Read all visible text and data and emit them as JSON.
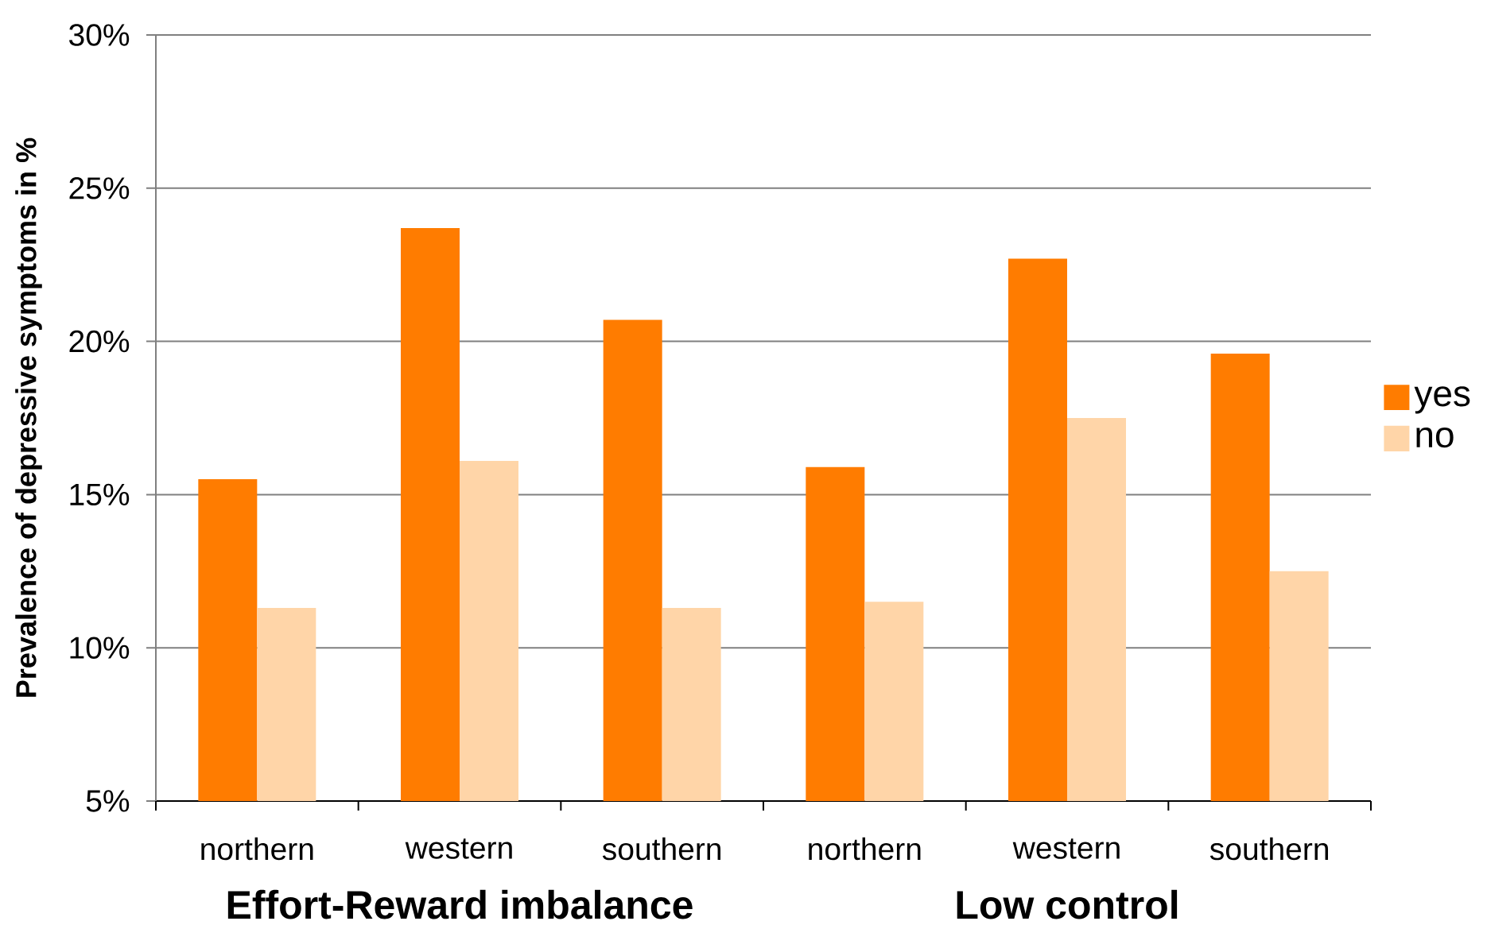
{
  "chart_data": {
    "type": "bar",
    "ylabel": "Prevalence of depressive symptoms in %",
    "categories": [
      "northern",
      "western",
      "southern",
      "northern",
      "western",
      "southern"
    ],
    "series": [
      {
        "name": "yes",
        "color": "#ff7c00",
        "values": [
          15.5,
          23.7,
          20.7,
          15.9,
          22.7,
          19.6
        ]
      },
      {
        "name": "no",
        "color": "#ffd5a8",
        "values": [
          11.3,
          16.1,
          11.3,
          11.5,
          17.5,
          12.5
        ]
      }
    ],
    "ylim": [
      5,
      30
    ],
    "yticks": [
      {
        "value": 5,
        "label": "5%"
      },
      {
        "value": 10,
        "label": "10%"
      },
      {
        "value": 15,
        "label": "15%"
      },
      {
        "value": 20,
        "label": "20%"
      },
      {
        "value": 25,
        "label": "25%"
      },
      {
        "value": 30,
        "label": "30%"
      }
    ],
    "grid": "y",
    "legend": "right",
    "annotations": [
      "Effort-Reward imbalance",
      "Low control"
    ]
  }
}
